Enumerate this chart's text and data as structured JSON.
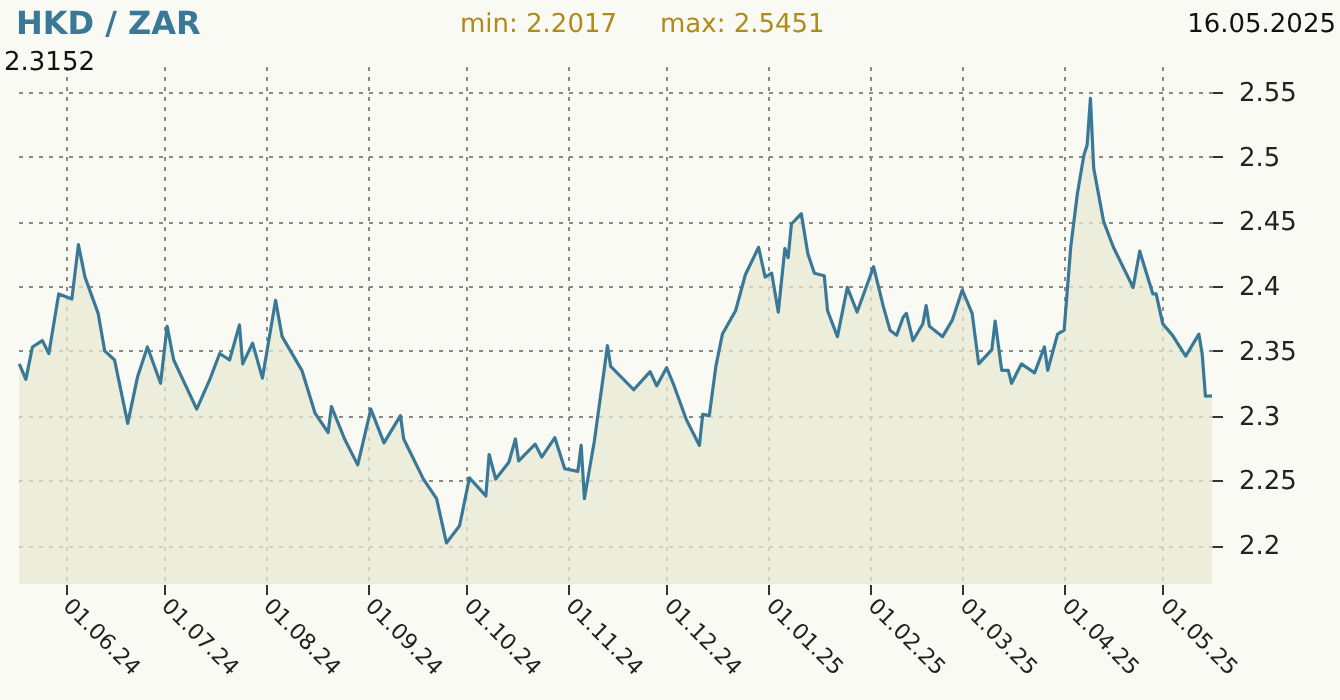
{
  "chart_data": {
    "type": "area",
    "title": "HKD / ZAR",
    "annotations": [
      "min: 2.2017",
      "max: 2.5451",
      "16.05.2025",
      "2.3152"
    ],
    "x": [
      "2024-05-18",
      "2024-05-20",
      "2024-05-22",
      "2024-05-25",
      "2024-05-27",
      "2024-05-30",
      "2024-06-03",
      "2024-06-05",
      "2024-06-07",
      "2024-06-11",
      "2024-06-13",
      "2024-06-16",
      "2024-06-20",
      "2024-06-23",
      "2024-06-26",
      "2024-06-30",
      "2024-07-02",
      "2024-07-04",
      "2024-07-11",
      "2024-07-15",
      "2024-07-18",
      "2024-07-21",
      "2024-07-24",
      "2024-07-25",
      "2024-07-28",
      "2024-07-31",
      "2024-08-04",
      "2024-08-06",
      "2024-08-12",
      "2024-08-16",
      "2024-08-20",
      "2024-08-21",
      "2024-08-25",
      "2024-08-29",
      "2024-09-02",
      "2024-09-06",
      "2024-09-11",
      "2024-09-12",
      "2024-09-18",
      "2024-09-22",
      "2024-09-25",
      "2024-09-29",
      "2024-10-02",
      "2024-10-07",
      "2024-10-08",
      "2024-10-10",
      "2024-10-14",
      "2024-10-16",
      "2024-10-17",
      "2024-10-22",
      "2024-10-24",
      "2024-10-28",
      "2024-10-31",
      "2024-11-04",
      "2024-11-05",
      "2024-11-06",
      "2024-11-09",
      "2024-11-12",
      "2024-11-13",
      "2024-11-14",
      "2024-11-21",
      "2024-11-26",
      "2024-11-28",
      "2024-12-01",
      "2024-12-03",
      "2024-12-07",
      "2024-12-11",
      "2024-12-12",
      "2024-12-14",
      "2024-12-16",
      "2024-12-18",
      "2024-12-22",
      "2024-12-25",
      "2024-12-29",
      "2024-12-31",
      "2025-01-02",
      "2025-01-04",
      "2025-01-06",
      "2025-01-07",
      "2025-01-08",
      "2025-01-11",
      "2025-01-13",
      "2025-01-15",
      "2025-01-18",
      "2025-01-19",
      "2025-01-22",
      "2025-01-25",
      "2025-01-28",
      "2025-02-02",
      "2025-02-05",
      "2025-02-07",
      "2025-02-09",
      "2025-02-11",
      "2025-02-12",
      "2025-02-14",
      "2025-02-17",
      "2025-02-18",
      "2025-02-19",
      "2025-02-23",
      "2025-02-26",
      "2025-03-01",
      "2025-03-04",
      "2025-03-06",
      "2025-03-10",
      "2025-03-11",
      "2025-03-13",
      "2025-03-15",
      "2025-03-16",
      "2025-03-19",
      "2025-03-23",
      "2025-03-26",
      "2025-03-27",
      "2025-03-30",
      "2025-04-01",
      "2025-04-03",
      "2025-04-05",
      "2025-04-07",
      "2025-04-08",
      "2025-04-09",
      "2025-04-10",
      "2025-04-13",
      "2025-04-16",
      "2025-04-22",
      "2025-04-24",
      "2025-04-28",
      "2025-04-29",
      "2025-05-01",
      "2025-05-04",
      "2025-05-08",
      "2025-05-12",
      "2025-05-13",
      "2025-05-14",
      "2025-05-16"
    ],
    "values": [
      2.34,
      2.328,
      2.353,
      2.358,
      2.348,
      2.394,
      2.39,
      2.432,
      2.407,
      2.379,
      2.35,
      2.343,
      2.294,
      2.33,
      2.353,
      2.325,
      2.369,
      2.343,
      2.305,
      2.328,
      2.348,
      2.343,
      2.37,
      2.34,
      2.356,
      2.329,
      2.389,
      2.361,
      2.335,
      2.302,
      2.287,
      2.307,
      2.282,
      2.262,
      2.305,
      2.279,
      2.3,
      2.282,
      2.251,
      2.236,
      2.2017,
      2.215,
      2.252,
      2.238,
      2.27,
      2.251,
      2.264,
      2.282,
      2.265,
      2.278,
      2.268,
      2.283,
      2.259,
      2.257,
      2.277,
      2.236,
      2.28,
      2.335,
      2.354,
      2.338,
      2.32,
      2.334,
      2.323,
      2.337,
      2.325,
      2.297,
      2.277,
      2.301,
      2.3,
      2.338,
      2.363,
      2.381,
      2.409,
      2.43,
      2.407,
      2.41,
      2.38,
      2.429,
      2.422,
      2.448,
      2.456,
      2.425,
      2.41,
      2.408,
      2.381,
      2.361,
      2.399,
      2.38,
      2.415,
      2.384,
      2.366,
      2.362,
      2.376,
      2.379,
      2.358,
      2.371,
      2.385,
      2.369,
      2.361,
      2.374,
      2.397,
      2.379,
      2.34,
      2.351,
      2.373,
      2.335,
      2.335,
      2.325,
      2.34,
      2.333,
      2.353,
      2.335,
      2.363,
      2.366,
      2.43,
      2.471,
      2.501,
      2.509,
      2.5451,
      2.491,
      2.45,
      2.43,
      2.399,
      2.427,
      2.394,
      2.394,
      2.371,
      2.362,
      2.346,
      2.363,
      2.348,
      2.315,
      2.3152
    ],
    "color": "#3a7898",
    "xlim": [
      "2024-05-17",
      "2025-05-16"
    ],
    "xticks": [
      {
        "value": "2024-06-01",
        "label": "01.06.24"
      },
      {
        "value": "2024-07-01",
        "label": "01.07.24"
      },
      {
        "value": "2024-08-01",
        "label": "01.08.24"
      },
      {
        "value": "2024-09-01",
        "label": "01.09.24"
      },
      {
        "value": "2024-10-01",
        "label": "01.10.24"
      },
      {
        "value": "2024-11-01",
        "label": "01.11.24"
      },
      {
        "value": "2024-12-01",
        "label": "01.12.24"
      },
      {
        "value": "2025-01-01",
        "label": "01.01.25"
      },
      {
        "value": "2025-02-01",
        "label": "01.02.25"
      },
      {
        "value": "2025-03-01",
        "label": "01.03.25"
      },
      {
        "value": "2025-04-01",
        "label": "01.04.25"
      },
      {
        "value": "2025-05-01",
        "label": "01.05.25"
      }
    ],
    "ylim": [
      2.17,
      2.57
    ],
    "yticks": [
      2.2,
      2.25,
      2.3,
      2.35,
      2.4,
      2.45,
      2.5,
      2.55
    ],
    "grid": true
  }
}
